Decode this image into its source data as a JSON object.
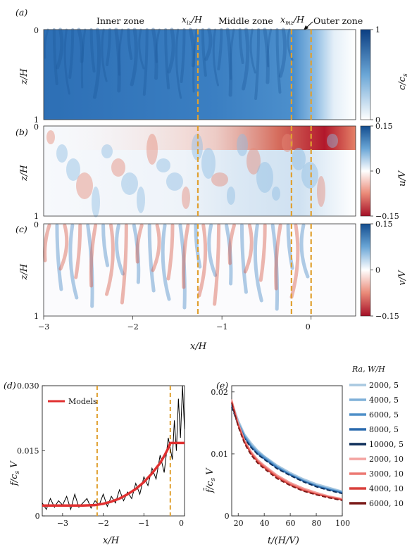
{
  "panel_labels": [
    "(a)",
    "(b)",
    "(c)",
    "(d)",
    "(e)"
  ],
  "zones": {
    "inner": "Inner zone",
    "middle": "Middle zone",
    "outer": "Outer zone",
    "x_iz": "x",
    "x_iz_sub": "iz",
    "x_mz": "x",
    "x_mz_sub": "mz",
    "over_h": "/H",
    "x_iz_value": -1.27,
    "x_mz_value": -0.22,
    "x_outer_value": 0
  },
  "colors": {
    "blue_dark": "#1d5fa8",
    "red_dark": "#b2182b",
    "dash": "#e0a030",
    "model_red": "#e03030"
  },
  "field_panels": [
    {
      "label": "(a)",
      "ylabel": "z/H",
      "cbar_label": "c/c_s",
      "cbar_ticks": [
        "1",
        "0"
      ],
      "cbar_range": [
        0,
        1
      ],
      "yticks": [
        "0",
        "1"
      ],
      "colormap": "white-blue"
    },
    {
      "label": "(b)",
      "ylabel": "z/H",
      "cbar_label": "u/V",
      "cbar_ticks": [
        "0.15",
        "0",
        "−0.15"
      ],
      "cbar_range": [
        -0.15,
        0.15
      ],
      "yticks": [
        "0",
        "1"
      ],
      "colormap": "red-white-blue"
    },
    {
      "label": "(c)",
      "ylabel": "z/H",
      "cbar_label": "v/V",
      "cbar_ticks": [
        "0.15",
        "0",
        "−0.15"
      ],
      "cbar_range": [
        -0.15,
        0.15
      ],
      "yticks": [
        "0",
        "1"
      ],
      "colormap": "red-white-blue"
    }
  ],
  "field_xaxis": {
    "label": "x/H",
    "ticks": [
      "−3",
      "−2",
      "−1",
      "0"
    ],
    "range": [
      -3,
      0.5
    ]
  },
  "chart_data": [
    {
      "type": "line",
      "panel": "(d)",
      "xlabel": "x/H",
      "ylabel": "f/c_s V",
      "xlim": [
        -3.5,
        0
      ],
      "ylim": [
        0,
        0.03
      ],
      "xticks": [
        "−3",
        "−2",
        "−1",
        "0"
      ],
      "yticks": [
        "0",
        "0.015",
        "0.030"
      ],
      "legend": "Models",
      "legend_position": "top-left",
      "vlines": [
        -2.15,
        -0.35
      ],
      "series": [
        {
          "name": "Models",
          "color": "#e03030",
          "x": [
            -3.5,
            -3.0,
            -2.5,
            -2.2,
            -2.0,
            -1.8,
            -1.6,
            -1.4,
            -1.2,
            -1.0,
            -0.8,
            -0.6,
            -0.5,
            -0.4,
            -0.35,
            -0.2,
            0.0
          ],
          "y": [
            0.0024,
            0.0024,
            0.0024,
            0.0025,
            0.0028,
            0.0033,
            0.004,
            0.005,
            0.0062,
            0.0078,
            0.0098,
            0.0122,
            0.0138,
            0.0156,
            0.0168,
            0.0168,
            0.0168
          ]
        },
        {
          "color": "#000000",
          "x": [
            -3.5,
            -3.4,
            -3.3,
            -3.2,
            -3.1,
            -3.0,
            -2.9,
            -2.8,
            -2.7,
            -2.6,
            -2.5,
            -2.4,
            -2.3,
            -2.2,
            -2.1,
            -2.0,
            -1.9,
            -1.8,
            -1.7,
            -1.6,
            -1.5,
            -1.4,
            -1.3,
            -1.2,
            -1.1,
            -1.0,
            -0.9,
            -0.8,
            -0.7,
            -0.6,
            -0.5,
            -0.4,
            -0.3,
            -0.25,
            -0.2,
            -0.15,
            -0.1,
            -0.05,
            0.0
          ],
          "y": [
            0.003,
            0.0015,
            0.004,
            0.002,
            0.0035,
            0.0025,
            0.0045,
            0.0015,
            0.005,
            0.002,
            0.003,
            0.004,
            0.0018,
            0.0035,
            0.0025,
            0.005,
            0.0022,
            0.0045,
            0.003,
            0.006,
            0.0035,
            0.0055,
            0.004,
            0.0075,
            0.005,
            0.009,
            0.007,
            0.011,
            0.0085,
            0.014,
            0.01,
            0.018,
            0.013,
            0.022,
            0.015,
            0.027,
            0.018,
            0.03,
            0.02
          ]
        }
      ]
    },
    {
      "type": "line",
      "panel": "(e)",
      "xlabel": "t/(H/V)",
      "ylabel": "f̄/c_s V",
      "xlim": [
        15,
        100
      ],
      "ylim": [
        0,
        0.021
      ],
      "xticks": [
        "20",
        "40",
        "60",
        "80",
        "100"
      ],
      "yticks": [
        "0",
        "0.01",
        "0.02"
      ],
      "legend_title": "Ra, W/H",
      "legend_position": "right",
      "x": [
        15,
        20,
        25,
        30,
        35,
        40,
        50,
        60,
        70,
        80,
        90,
        100
      ],
      "series": [
        {
          "name": "2000, 5",
          "color": "#a9c8e0",
          "values": [
            0.0185,
            0.0155,
            0.0132,
            0.0118,
            0.0106,
            0.0097,
            0.0082,
            0.007,
            0.006,
            0.0052,
            0.0046,
            0.004
          ]
        },
        {
          "name": "4000, 5",
          "color": "#7fb0d8",
          "values": [
            0.0183,
            0.0152,
            0.013,
            0.0115,
            0.0104,
            0.0096,
            0.008,
            0.0068,
            0.0058,
            0.005,
            0.0044,
            0.0039
          ]
        },
        {
          "name": "6000, 5",
          "color": "#4f8fc8",
          "values": [
            0.018,
            0.015,
            0.0128,
            0.0113,
            0.0102,
            0.0094,
            0.0079,
            0.0067,
            0.0057,
            0.0049,
            0.0043,
            0.0038
          ]
        },
        {
          "name": "8000, 5",
          "color": "#2a6aad",
          "values": [
            0.0178,
            0.0148,
            0.0126,
            0.0111,
            0.01,
            0.0092,
            0.0077,
            0.0066,
            0.0056,
            0.0048,
            0.0042,
            0.0037
          ]
        },
        {
          "name": "10000, 5",
          "color": "#0f2f5a",
          "values": [
            0.0176,
            0.0146,
            0.0124,
            0.011,
            0.0099,
            0.0091,
            0.0076,
            0.0065,
            0.0055,
            0.0047,
            0.0041,
            0.0036
          ]
        },
        {
          "name": "2000, 10",
          "color": "#f4a3a0",
          "values": [
            0.0188,
            0.015,
            0.0122,
            0.0104,
            0.0091,
            0.0082,
            0.0066,
            0.0054,
            0.0045,
            0.0038,
            0.0032,
            0.0028
          ]
        },
        {
          "name": "3000, 10",
          "color": "#ec7872",
          "values": [
            0.0186,
            0.0148,
            0.012,
            0.0102,
            0.0089,
            0.008,
            0.0064,
            0.0052,
            0.0043,
            0.0036,
            0.0031,
            0.0027
          ]
        },
        {
          "name": "4000, 10",
          "color": "#d9403c",
          "values": [
            0.0184,
            0.0146,
            0.0118,
            0.01,
            0.0087,
            0.0078,
            0.0062,
            0.005,
            0.0041,
            0.0035,
            0.003,
            0.0026
          ]
        },
        {
          "name": "6000, 10",
          "color": "#7a1a18",
          "values": [
            0.0182,
            0.0144,
            0.0116,
            0.0098,
            0.0085,
            0.0076,
            0.006,
            0.0049,
            0.004,
            0.0034,
            0.0029,
            0.0025
          ]
        }
      ]
    }
  ]
}
